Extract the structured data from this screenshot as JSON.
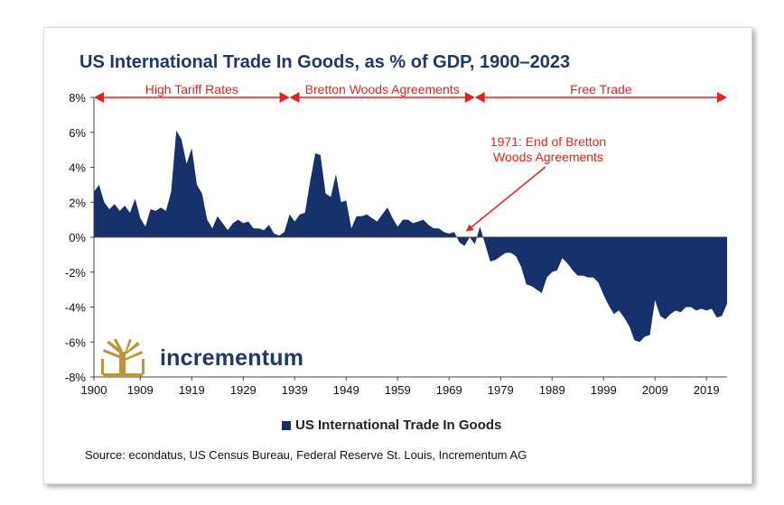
{
  "title": "US International Trade In Goods, as % of GDP, 1900–2023",
  "legend_label": "US International Trade In Goods",
  "source": "Source: econdatus, US Census Bureau, Federal Reserve St. Louis, Incrementum AG",
  "logo_text": "incrementum",
  "colors": {
    "area": "#15306a",
    "arrows": "#e3231f",
    "annotation": "#e3231f",
    "logo_gold": "#b8963c",
    "title": "#1f3868"
  },
  "chart_data": {
    "type": "area",
    "title": "US International Trade In Goods, as % of GDP, 1900–2023",
    "xlabel": "",
    "ylabel": "",
    "xlim": [
      1900,
      2023
    ],
    "ylim": [
      -8,
      8
    ],
    "x_ticks": [
      1900,
      1909,
      1919,
      1929,
      1939,
      1949,
      1959,
      1969,
      1979,
      1989,
      1999,
      2009,
      2019
    ],
    "y_ticks": [
      {
        "value": 8,
        "label": "8%"
      },
      {
        "value": 6,
        "label": "6%"
      },
      {
        "value": 4,
        "label": "4%"
      },
      {
        "value": 2,
        "label": "2%"
      },
      {
        "value": 0,
        "label": "0%"
      },
      {
        "value": -2,
        "label": "-2%"
      },
      {
        "value": -4,
        "label": "-4%"
      },
      {
        "value": -6,
        "label": "-6%"
      },
      {
        "value": -8,
        "label": "-8%"
      }
    ],
    "grid": false,
    "legend_position": "bottom",
    "series": [
      {
        "name": "US International Trade In Goods",
        "x": [
          1900,
          1901,
          1902,
          1903,
          1904,
          1905,
          1906,
          1907,
          1908,
          1909,
          1910,
          1911,
          1912,
          1913,
          1914,
          1915,
          1916,
          1917,
          1918,
          1919,
          1920,
          1921,
          1922,
          1923,
          1924,
          1925,
          1926,
          1927,
          1928,
          1929,
          1930,
          1931,
          1932,
          1933,
          1934,
          1935,
          1936,
          1937,
          1938,
          1939,
          1940,
          1941,
          1942,
          1943,
          1944,
          1945,
          1946,
          1947,
          1948,
          1949,
          1950,
          1951,
          1952,
          1953,
          1954,
          1955,
          1956,
          1957,
          1958,
          1959,
          1960,
          1961,
          1962,
          1963,
          1964,
          1965,
          1966,
          1967,
          1968,
          1969,
          1970,
          1971,
          1972,
          1973,
          1974,
          1975,
          1976,
          1977,
          1978,
          1979,
          1980,
          1981,
          1982,
          1983,
          1984,
          1985,
          1986,
          1987,
          1988,
          1989,
          1990,
          1991,
          1992,
          1993,
          1994,
          1995,
          1996,
          1997,
          1998,
          1999,
          2000,
          2001,
          2002,
          2003,
          2004,
          2005,
          2006,
          2007,
          2008,
          2009,
          2010,
          2011,
          2012,
          2013,
          2014,
          2015,
          2016,
          2017,
          2018,
          2019,
          2020,
          2021,
          2022,
          2023
        ],
        "values": [
          2.6,
          3.0,
          2.0,
          1.6,
          1.9,
          1.5,
          1.8,
          1.4,
          2.2,
          1.1,
          0.6,
          1.6,
          1.5,
          1.7,
          1.5,
          2.6,
          6.1,
          5.6,
          4.2,
          5.1,
          3.0,
          2.5,
          1.0,
          0.5,
          1.2,
          0.8,
          0.4,
          0.8,
          1.0,
          0.8,
          0.9,
          0.5,
          0.5,
          0.4,
          0.7,
          0.2,
          0.1,
          0.3,
          1.3,
          0.9,
          1.3,
          1.4,
          3.2,
          4.8,
          4.7,
          2.5,
          2.3,
          3.6,
          2.0,
          2.1,
          0.5,
          1.2,
          1.2,
          1.3,
          1.1,
          0.9,
          1.3,
          1.7,
          1.1,
          0.6,
          1.0,
          1.0,
          0.8,
          0.9,
          1.0,
          0.7,
          0.5,
          0.5,
          0.3,
          0.2,
          0.3,
          -0.3,
          -0.5,
          0.0,
          -0.4,
          0.6,
          -0.4,
          -1.4,
          -1.3,
          -1.1,
          -0.9,
          -0.9,
          -1.1,
          -1.7,
          -2.7,
          -2.8,
          -3.0,
          -3.2,
          -2.3,
          -2.0,
          -1.9,
          -1.2,
          -1.5,
          -1.9,
          -2.2,
          -2.2,
          -2.3,
          -2.3,
          -2.6,
          -3.3,
          -3.9,
          -4.4,
          -4.2,
          -4.6,
          -5.1,
          -5.9,
          -6.0,
          -5.7,
          -5.6,
          -3.6,
          -4.5,
          -4.7,
          -4.4,
          -4.2,
          -4.3,
          -4.0,
          -4.0,
          -4.2,
          -4.1,
          -4.2,
          -4.1,
          -4.6,
          -4.5,
          -3.8
        ]
      }
    ],
    "annotations": [
      {
        "type": "range",
        "label": "High Tariff Rates",
        "from": 1900,
        "to": 1938
      },
      {
        "type": "range",
        "label": "Bretton Woods Agreements",
        "from": 1938,
        "to": 1974
      },
      {
        "type": "range",
        "label": "Free Trade",
        "from": 1974,
        "to": 2023
      },
      {
        "type": "callout",
        "lines": [
          "1971: End of Bretton",
          "Woods Agreements"
        ],
        "x": 1971,
        "y": 0.2
      }
    ]
  }
}
